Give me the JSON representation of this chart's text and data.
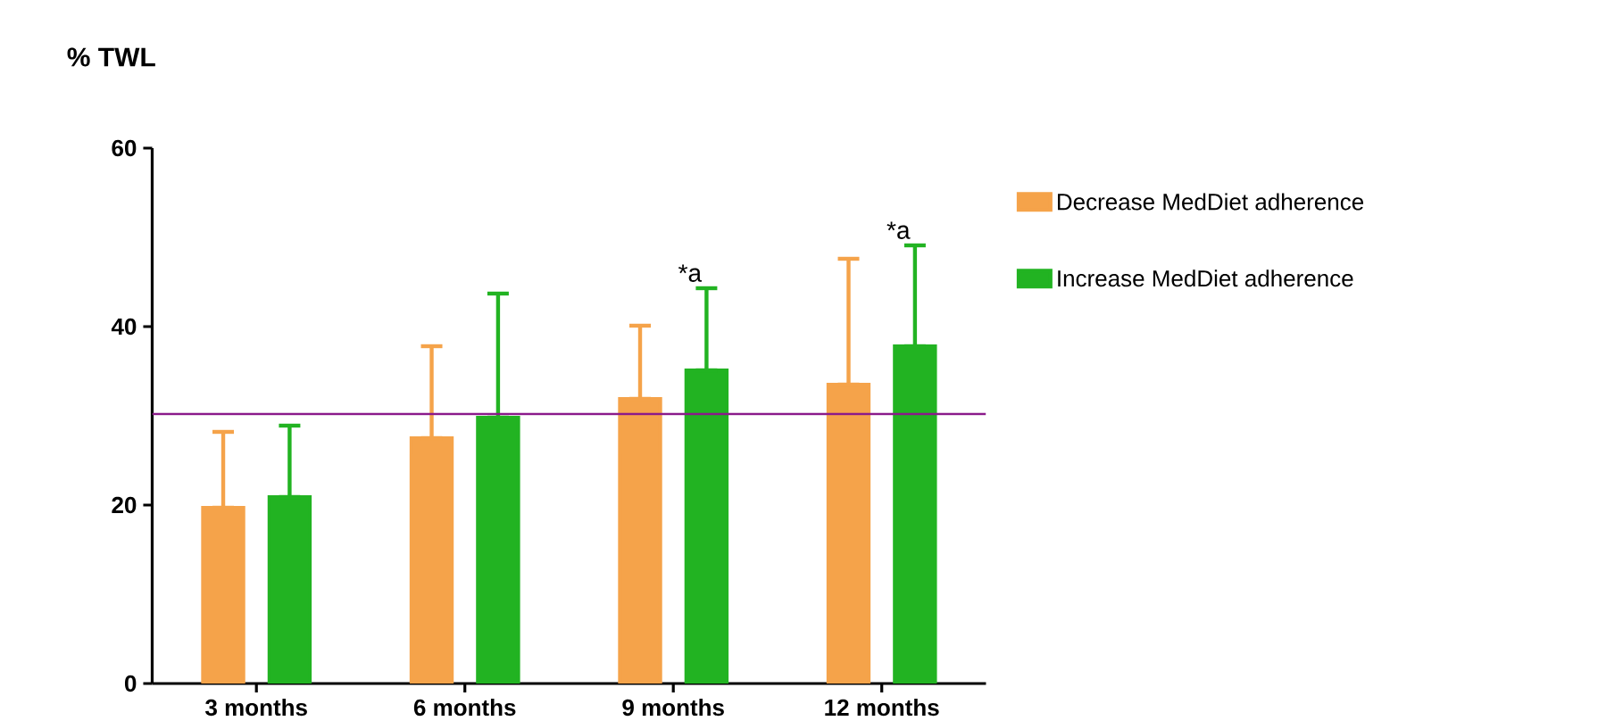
{
  "chart_data": {
    "type": "bar",
    "title": "% TWL",
    "categories": [
      "3 months",
      "6 months",
      "9 months",
      "12 months"
    ],
    "series": [
      {
        "name": "Decrease MedDiet adherence",
        "color": "#f5a34a",
        "values": [
          19.7,
          27.5,
          31.9,
          33.5
        ],
        "errors": [
          [
            19.7,
            28.2
          ],
          [
            27.5,
            37.8
          ],
          [
            31.9,
            40.1
          ],
          [
            33.5,
            47.6
          ]
        ]
      },
      {
        "name": "Increase MedDiet adherence",
        "color": "#22b322",
        "values": [
          20.9,
          29.8,
          35.1,
          37.8
        ],
        "errors": [
          [
            20.9,
            28.9
          ],
          [
            29.8,
            43.7
          ],
          [
            35.1,
            44.3
          ],
          [
            37.8,
            49.1
          ]
        ]
      }
    ],
    "ylim": [
      0,
      60
    ],
    "yticks": [
      0,
      20,
      40,
      60
    ],
    "ref_lines": [
      {
        "axis": "y",
        "value": 30.2,
        "color": "#8b1a8b"
      }
    ],
    "annotations": [
      "*a",
      "*a"
    ],
    "legend": "right",
    "grid": false
  }
}
